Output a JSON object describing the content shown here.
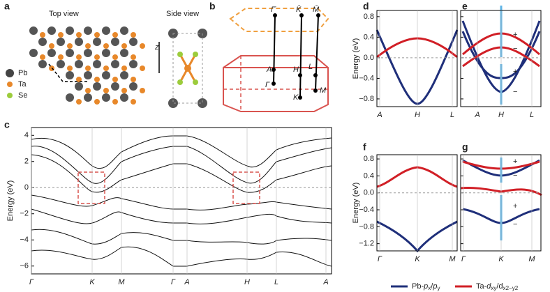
{
  "panels": {
    "a": {
      "label": "a",
      "top_view": "Top view",
      "side_view": "Side view",
      "axis": "z",
      "legend": [
        "Pb",
        "Ta",
        "Se"
      ]
    },
    "b": {
      "label": "b",
      "points": [
        "Γ̄",
        "K̄",
        "M̄",
        "A",
        "H",
        "L",
        "Γ",
        "K",
        "M"
      ]
    },
    "c": {
      "label": "c",
      "y_label": "Energy (eV)",
      "ylim": [
        -6.6,
        4.6
      ],
      "yticks": [
        {
          "value": 4,
          "label": "4"
        },
        {
          "value": 2,
          "label": "2"
        },
        {
          "value": 0,
          "label": "0"
        },
        {
          "value": -2,
          "label": "−2"
        },
        {
          "value": -4,
          "label": "−4"
        },
        {
          "value": -6,
          "label": "−6"
        }
      ],
      "x_labels": [
        "Γ",
        "K",
        "M",
        "Γ",
        "A",
        "H",
        "L",
        "A"
      ]
    },
    "d": {
      "label": "d",
      "y_label": "Energy (eV)",
      "ylim": [
        -0.95,
        0.92
      ],
      "yticks": [
        {
          "value": 0.8,
          "label": "0.8"
        },
        {
          "value": 0.4,
          "label": "0.4"
        },
        {
          "value": 0,
          "label": "0.0"
        },
        {
          "value": -0.4,
          "label": "−0.4"
        },
        {
          "value": -0.8,
          "label": "−0.8"
        }
      ],
      "x_labels": [
        "A",
        "H",
        "L"
      ]
    },
    "e": {
      "label": "e",
      "x_labels": [
        "A",
        "H",
        "L"
      ],
      "signs": [
        "+",
        "−",
        "+",
        "−"
      ]
    },
    "f": {
      "label": "f",
      "y_label": "Energy (eV)",
      "ylim": [
        -1.37,
        0.9
      ],
      "yticks": [
        {
          "value": 0.8,
          "label": "0.8"
        },
        {
          "value": 0.4,
          "label": "0.4"
        },
        {
          "value": 0,
          "label": "0.0"
        },
        {
          "value": -0.4,
          "label": "−0.4"
        },
        {
          "value": -0.8,
          "label": "−0.8"
        },
        {
          "value": -1.2,
          "label": "−1.2"
        }
      ],
      "x_labels": [
        "Γ",
        "K",
        "M"
      ]
    },
    "g": {
      "label": "g",
      "x_labels": [
        "Γ",
        "K",
        "M"
      ],
      "signs": [
        "+",
        "−",
        "+",
        "−"
      ]
    },
    "legend": {
      "pb": [
        "Pb-",
        "p",
        "x",
        "/",
        "p",
        "y"
      ],
      "ta": [
        "Ta-",
        "d",
        "xy",
        "/d",
        "x2−y2"
      ]
    }
  }
}
